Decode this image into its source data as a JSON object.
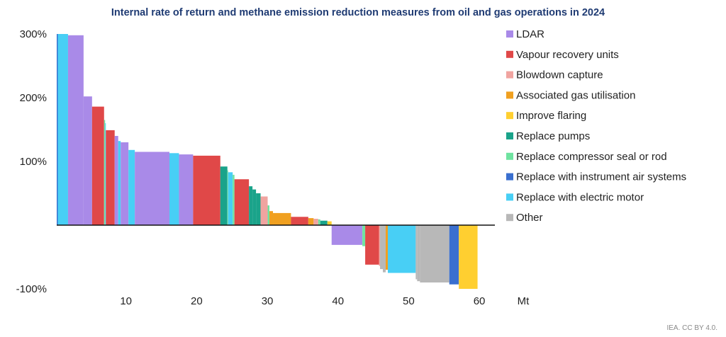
{
  "chart_data": {
    "type": "bar",
    "subtype": "variable-width cumulative bar (marginal abatement curve)",
    "title": "Internal rate of return and methane emission reduction measures from oil and gas operations in 2024",
    "xlabel": "Mt",
    "ylabel": "",
    "xlim": [
      0,
      62
    ],
    "ylim": [
      -100,
      300
    ],
    "x_ticks": [
      {
        "value": 10,
        "label": "10"
      },
      {
        "value": 20,
        "label": "20"
      },
      {
        "value": 30,
        "label": "30"
      },
      {
        "value": 40,
        "label": "40"
      },
      {
        "value": 50,
        "label": "50"
      },
      {
        "value": 60,
        "label": "60"
      }
    ],
    "y_ticks": [
      {
        "value": 300,
        "label": "300%"
      },
      {
        "value": 200,
        "label": "200%"
      },
      {
        "value": 100,
        "label": "100%"
      },
      {
        "value": -100,
        "label": "-100%"
      }
    ],
    "legend_position": "right",
    "legend": [
      {
        "name": "LDAR",
        "color": "#a98ae8"
      },
      {
        "name": "Vapour recovery units",
        "color": "#e04848"
      },
      {
        "name": "Blowdown capture",
        "color": "#f0a4a0"
      },
      {
        "name": "Associated gas utilisation",
        "color": "#f0a020"
      },
      {
        "name": "Improve flaring",
        "color": "#ffcf30"
      },
      {
        "name": "Replace pumps",
        "color": "#1aa38a"
      },
      {
        "name": "Replace compressor seal or rod",
        "color": "#6fe3a0"
      },
      {
        "name": "Replace with instrument air systems",
        "color": "#3a6fcf"
      },
      {
        "name": "Replace with electric motor",
        "color": "#48cff5"
      },
      {
        "name": "Other",
        "color": "#b8b8b8"
      }
    ],
    "segments_note": "Each segment: measure, abatement width in Mt, IRR in %",
    "segments": [
      {
        "measure": "Replace with instrument air systems",
        "width": 0.15,
        "irr": 300
      },
      {
        "measure": "Replace with electric motor",
        "width": 1.45,
        "irr": 300
      },
      {
        "measure": "LDAR",
        "width": 2.2,
        "irr": 298
      },
      {
        "measure": "LDAR",
        "width": 1.2,
        "irr": 202
      },
      {
        "measure": "Vapour recovery units",
        "width": 1.7,
        "irr": 186
      },
      {
        "measure": "Replace compressor seal or rod",
        "width": 0.15,
        "irr": 165
      },
      {
        "measure": "Replace with electric motor",
        "width": 0.1,
        "irr": 160
      },
      {
        "measure": "Vapour recovery units",
        "width": 1.25,
        "irr": 149
      },
      {
        "measure": "LDAR",
        "width": 0.5,
        "irr": 140
      },
      {
        "measure": "Replace with electric motor",
        "width": 0.35,
        "irr": 132
      },
      {
        "measure": "LDAR",
        "width": 1.1,
        "irr": 130
      },
      {
        "measure": "Replace with electric motor",
        "width": 0.9,
        "irr": 118
      },
      {
        "measure": "LDAR",
        "width": 4.9,
        "irr": 115
      },
      {
        "measure": "Replace with electric motor",
        "width": 1.35,
        "irr": 113
      },
      {
        "measure": "LDAR",
        "width": 2.0,
        "irr": 111
      },
      {
        "measure": "Vapour recovery units",
        "width": 3.85,
        "irr": 109
      },
      {
        "measure": "Replace pumps",
        "width": 1.0,
        "irr": 92
      },
      {
        "measure": "Replace compressor seal or rod",
        "width": 0.1,
        "irr": 86
      },
      {
        "measure": "Replace with electric motor",
        "width": 0.65,
        "irr": 83
      },
      {
        "measure": "Replace compressor seal or rod",
        "width": 0.25,
        "irr": 79
      },
      {
        "measure": "Vapour recovery units",
        "width": 2.05,
        "irr": 72
      },
      {
        "measure": "Replace pumps",
        "width": 0.5,
        "irr": 61
      },
      {
        "measure": "Replace pumps",
        "width": 0.5,
        "irr": 56
      },
      {
        "measure": "Replace pumps",
        "width": 0.65,
        "irr": 50
      },
      {
        "measure": "Blowdown capture",
        "width": 1.0,
        "irr": 45
      },
      {
        "measure": "Replace compressor seal or rod",
        "width": 0.25,
        "irr": 31
      },
      {
        "measure": "Associated gas utilisation",
        "width": 0.5,
        "irr": 22
      },
      {
        "measure": "Associated gas utilisation",
        "width": 2.55,
        "irr": 19
      },
      {
        "measure": "Vapour recovery units",
        "width": 2.45,
        "irr": 13
      },
      {
        "measure": "Associated gas utilisation",
        "width": 0.75,
        "irr": 11
      },
      {
        "measure": "Blowdown capture",
        "width": 0.65,
        "irr": 10
      },
      {
        "measure": "Replace compressor seal or rod",
        "width": 0.3,
        "irr": 9
      },
      {
        "measure": "Replace pumps",
        "width": 1.0,
        "irr": 7
      },
      {
        "measure": "Improve flaring",
        "width": 0.6,
        "irr": 6
      },
      {
        "measure": "LDAR",
        "width": 4.35,
        "irr": -31
      },
      {
        "measure": "Replace compressor seal or rod",
        "width": 0.4,
        "irr": -33
      },
      {
        "measure": "Vapour recovery units",
        "width": 1.95,
        "irr": -62
      },
      {
        "measure": "Blowdown capture",
        "width": 0.15,
        "irr": -64
      },
      {
        "measure": "Other",
        "width": 0.4,
        "irr": -69
      },
      {
        "measure": "Other",
        "width": 0.4,
        "irr": -74
      },
      {
        "measure": "Associated gas utilisation",
        "width": 0.3,
        "irr": -70
      },
      {
        "measure": "Replace with electric motor",
        "width": 3.95,
        "irr": -75
      },
      {
        "measure": "Other",
        "width": 0.2,
        "irr": -85
      },
      {
        "measure": "Other",
        "width": 0.4,
        "irr": -88
      },
      {
        "measure": "Other",
        "width": 4.15,
        "irr": -90
      },
      {
        "measure": "Replace with instrument air systems",
        "width": 1.35,
        "irr": -93
      },
      {
        "measure": "Improve flaring",
        "width": 2.65,
        "irr": -100
      }
    ],
    "source": "IEA. CC BY 4.0."
  }
}
